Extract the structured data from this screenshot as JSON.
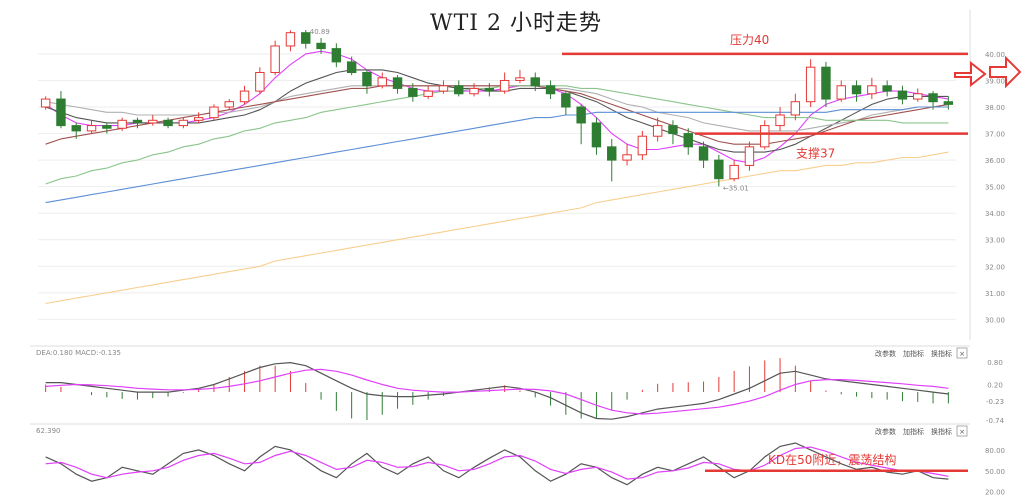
{
  "title": "WTI 2 小时走势",
  "controls": {
    "params": "改参数",
    "add": "加指标",
    "change": "换指标",
    "close": "×"
  },
  "colors": {
    "up": "#e53935",
    "down": "#2e7d32",
    "annotation": "#e53935",
    "ma5": "#e040fb",
    "ma10": "#555555",
    "ma20": "#b0b0b0",
    "ma30": "#a0524f",
    "ma60": "#8bc58b",
    "ma120": "#5b8fd6",
    "ma250": "#f8cf8f"
  },
  "annotations": {
    "resistance": {
      "label": "压力40",
      "value": 40
    },
    "support": {
      "label": "支撑37",
      "value": 37
    },
    "kd": {
      "label": "KD在50附近，震荡结构",
      "value": 50
    },
    "arrow_icon": "right-arrow-icon"
  },
  "chart_data": [
    {
      "type": "candlestick",
      "title": "WTI 2 小时走势",
      "ylim": [
        29.6,
        40.6
      ],
      "y_ticks": [
        "40.00",
        "39.00",
        "38.00",
        "37.00",
        "36.00",
        "35.00",
        "34.00",
        "33.00",
        "32.00",
        "31.00",
        "30.00"
      ],
      "high_label": "40.89",
      "low_label": "35.01",
      "candles": [
        [
          38.0,
          38.3,
          37.9,
          38.4
        ],
        [
          38.3,
          37.3,
          37.2,
          38.6
        ],
        [
          37.3,
          37.1,
          36.8,
          37.4
        ],
        [
          37.1,
          37.3,
          37.0,
          37.5
        ],
        [
          37.3,
          37.2,
          37.0,
          37.4
        ],
        [
          37.2,
          37.5,
          37.1,
          37.6
        ],
        [
          37.5,
          37.4,
          37.2,
          37.6
        ],
        [
          37.4,
          37.5,
          37.3,
          37.7
        ],
        [
          37.5,
          37.3,
          37.2,
          37.6
        ],
        [
          37.3,
          37.5,
          37.2,
          37.6
        ],
        [
          37.5,
          37.6,
          37.4,
          37.8
        ],
        [
          37.6,
          38.0,
          37.5,
          38.1
        ],
        [
          38.0,
          38.2,
          37.9,
          38.3
        ],
        [
          38.2,
          38.6,
          38.1,
          38.8
        ],
        [
          38.6,
          39.3,
          38.5,
          39.5
        ],
        [
          39.3,
          40.3,
          39.2,
          40.5
        ],
        [
          40.3,
          40.8,
          40.1,
          40.89
        ],
        [
          40.8,
          40.4,
          40.2,
          40.9
        ],
        [
          40.4,
          40.2,
          40.0,
          40.6
        ],
        [
          40.2,
          39.7,
          39.5,
          40.4
        ],
        [
          39.7,
          39.3,
          39.2,
          39.9
        ],
        [
          39.3,
          38.8,
          38.5,
          39.4
        ],
        [
          38.8,
          39.1,
          38.7,
          39.3
        ],
        [
          39.1,
          38.7,
          38.5,
          39.2
        ],
        [
          38.7,
          38.4,
          38.2,
          38.9
        ],
        [
          38.4,
          38.6,
          38.3,
          38.8
        ],
        [
          38.6,
          38.8,
          38.5,
          39.0
        ],
        [
          38.8,
          38.5,
          38.4,
          39.0
        ],
        [
          38.5,
          38.7,
          38.4,
          38.9
        ],
        [
          38.7,
          38.6,
          38.4,
          38.9
        ],
        [
          38.6,
          39.0,
          38.5,
          39.3
        ],
        [
          39.0,
          39.1,
          38.9,
          39.4
        ],
        [
          39.1,
          38.8,
          38.6,
          39.3
        ],
        [
          38.8,
          38.5,
          38.3,
          39.0
        ],
        [
          38.5,
          38.0,
          37.7,
          38.6
        ],
        [
          38.0,
          37.4,
          36.6,
          38.1
        ],
        [
          37.4,
          36.5,
          36.2,
          37.6
        ],
        [
          36.5,
          36.0,
          35.2,
          36.8
        ],
        [
          36.0,
          36.2,
          35.8,
          36.6
        ],
        [
          36.2,
          36.9,
          36.0,
          37.1
        ],
        [
          36.9,
          37.3,
          36.7,
          37.6
        ],
        [
          37.3,
          37.0,
          36.6,
          37.5
        ],
        [
          37.0,
          36.5,
          36.2,
          37.2
        ],
        [
          36.5,
          36.0,
          35.7,
          36.7
        ],
        [
          36.0,
          35.3,
          35.01,
          36.2
        ],
        [
          35.3,
          35.8,
          35.2,
          36.0
        ],
        [
          35.8,
          36.5,
          35.6,
          36.7
        ],
        [
          36.5,
          37.3,
          36.4,
          37.5
        ],
        [
          37.3,
          37.7,
          37.1,
          38.0
        ],
        [
          37.7,
          38.2,
          37.5,
          38.5
        ],
        [
          38.2,
          39.5,
          38.0,
          39.8
        ],
        [
          39.5,
          38.3,
          38.0,
          39.7
        ],
        [
          38.3,
          38.8,
          38.2,
          39.0
        ],
        [
          38.8,
          38.5,
          38.2,
          39.0
        ],
        [
          38.5,
          38.8,
          38.3,
          39.1
        ],
        [
          38.8,
          38.6,
          38.4,
          39.0
        ],
        [
          38.6,
          38.3,
          38.1,
          38.8
        ],
        [
          38.3,
          38.5,
          38.2,
          38.7
        ],
        [
          38.5,
          38.2,
          37.9,
          38.6
        ],
        [
          38.2,
          38.1,
          37.9,
          38.4
        ]
      ],
      "moving_averages": [
        {
          "colorKey": "ma5",
          "values": [
            38.1,
            37.7,
            37.4,
            37.3,
            37.3,
            37.3,
            37.4,
            37.4,
            37.4,
            37.4,
            37.5,
            37.6,
            37.8,
            38.1,
            38.5,
            39.1,
            39.6,
            40.0,
            40.1,
            40.0,
            39.8,
            39.4,
            39.1,
            38.9,
            38.7,
            38.6,
            38.6,
            38.6,
            38.6,
            38.6,
            38.7,
            38.8,
            38.8,
            38.7,
            38.5,
            38.1,
            37.6,
            37.0,
            36.6,
            36.4,
            36.4,
            36.5,
            36.6,
            36.6,
            36.3,
            36.0,
            35.9,
            36.1,
            36.5,
            37.0,
            37.7,
            38.1,
            38.3,
            38.4,
            38.5,
            38.6,
            38.6,
            38.5,
            38.4,
            38.3
          ]
        },
        {
          "colorKey": "ma10",
          "values": [
            38.0,
            37.8,
            37.6,
            37.5,
            37.4,
            37.4,
            37.4,
            37.4,
            37.4,
            37.4,
            37.4,
            37.5,
            37.6,
            37.7,
            37.9,
            38.2,
            38.6,
            38.9,
            39.1,
            39.3,
            39.4,
            39.4,
            39.4,
            39.3,
            39.1,
            38.9,
            38.8,
            38.7,
            38.7,
            38.6,
            38.6,
            38.7,
            38.7,
            38.7,
            38.6,
            38.4,
            38.2,
            37.9,
            37.6,
            37.4,
            37.2,
            37.0,
            36.8,
            36.6,
            36.4,
            36.3,
            36.3,
            36.3,
            36.4,
            36.6,
            36.9,
            37.2,
            37.5,
            37.8,
            38.1,
            38.3,
            38.4,
            38.4,
            38.4,
            38.4
          ]
        },
        {
          "colorKey": "ma20",
          "values": [
            38.2,
            38.1,
            38.0,
            37.9,
            37.8,
            37.8,
            37.7,
            37.7,
            37.7,
            37.7,
            37.7,
            37.8,
            37.8,
            37.9,
            38.0,
            38.2,
            38.4,
            38.5,
            38.6,
            38.7,
            38.8,
            38.8,
            38.8,
            38.8,
            38.8,
            38.8,
            38.8,
            38.8,
            38.8,
            38.8,
            38.8,
            38.8,
            38.8,
            38.7,
            38.7,
            38.6,
            38.5,
            38.3,
            38.1,
            38.0,
            37.8,
            37.7,
            37.6,
            37.4,
            37.3,
            37.2,
            37.1,
            37.1,
            37.1,
            37.1,
            37.2,
            37.3,
            37.4,
            37.5,
            37.7,
            37.8,
            37.9,
            38.0,
            38.0,
            38.1
          ]
        },
        {
          "colorKey": "ma30",
          "values": [
            36.6,
            36.8,
            36.9,
            37.0,
            37.1,
            37.2,
            37.3,
            37.4,
            37.5,
            37.6,
            37.7,
            37.8,
            37.9,
            38.0,
            38.1,
            38.2,
            38.3,
            38.4,
            38.5,
            38.6,
            38.7,
            38.7,
            38.8,
            38.8,
            38.8,
            38.8,
            38.8,
            38.8,
            38.8,
            38.8,
            38.8,
            38.8,
            38.8,
            38.7,
            38.6,
            38.5,
            38.3,
            38.1,
            37.9,
            37.7,
            37.5,
            37.3,
            37.1,
            36.9,
            36.7,
            36.6,
            36.6,
            36.6,
            36.7,
            36.8,
            36.9,
            37.1,
            37.3,
            37.5,
            37.6,
            37.7,
            37.8,
            37.9,
            38.0,
            38.1
          ]
        },
        {
          "colorKey": "ma60",
          "values": [
            35.1,
            35.3,
            35.4,
            35.6,
            35.7,
            35.9,
            36.0,
            36.2,
            36.3,
            36.5,
            36.6,
            36.8,
            36.9,
            37.1,
            37.2,
            37.4,
            37.5,
            37.6,
            37.8,
            37.9,
            38.0,
            38.1,
            38.2,
            38.3,
            38.4,
            38.5,
            38.6,
            38.6,
            38.7,
            38.7,
            38.8,
            38.8,
            38.8,
            38.8,
            38.8,
            38.7,
            38.7,
            38.6,
            38.5,
            38.4,
            38.3,
            38.2,
            38.1,
            38.0,
            37.9,
            37.8,
            37.7,
            37.6,
            37.6,
            37.6,
            37.6,
            37.5,
            37.5,
            37.5,
            37.5,
            37.5,
            37.4,
            37.4,
            37.4,
            37.4
          ]
        },
        {
          "colorKey": "ma120",
          "values": [
            34.4,
            34.5,
            34.6,
            34.7,
            34.8,
            34.9,
            35.0,
            35.1,
            35.2,
            35.3,
            35.4,
            35.5,
            35.6,
            35.7,
            35.8,
            35.9,
            36.0,
            36.1,
            36.2,
            36.3,
            36.4,
            36.5,
            36.6,
            36.7,
            36.8,
            36.9,
            37.0,
            37.1,
            37.2,
            37.3,
            37.4,
            37.5,
            37.6,
            37.6,
            37.7,
            37.7,
            37.8,
            37.8,
            37.8,
            37.8,
            37.8,
            37.8,
            37.8,
            37.8,
            37.8,
            37.8,
            37.8,
            37.8,
            37.8,
            37.8,
            37.8,
            37.8,
            37.9,
            37.9,
            37.9,
            37.9,
            37.9,
            38.0,
            38.0,
            38.0
          ]
        },
        {
          "colorKey": "ma250",
          "values": [
            30.6,
            30.7,
            30.8,
            30.9,
            31.0,
            31.1,
            31.2,
            31.3,
            31.4,
            31.5,
            31.6,
            31.7,
            31.8,
            31.9,
            32.0,
            32.2,
            32.3,
            32.4,
            32.5,
            32.6,
            32.7,
            32.8,
            32.9,
            33.0,
            33.1,
            33.2,
            33.3,
            33.4,
            33.5,
            33.6,
            33.7,
            33.8,
            33.9,
            34.0,
            34.1,
            34.2,
            34.4,
            34.5,
            34.6,
            34.7,
            34.8,
            34.9,
            35.0,
            35.1,
            35.2,
            35.3,
            35.4,
            35.5,
            35.6,
            35.6,
            35.7,
            35.8,
            35.8,
            35.9,
            35.9,
            36.0,
            36.1,
            36.1,
            36.2,
            36.3
          ]
        }
      ]
    },
    {
      "type": "macd",
      "header": "DEA:0.180 MACD:-0.135",
      "ylim": [
        -0.74,
        0.85
      ],
      "y_ticks": [
        "0.80",
        "0.20",
        "-0.23",
        "-0.74"
      ],
      "dif": [
        0.25,
        0.25,
        0.2,
        0.15,
        0.1,
        0.05,
        0.0,
        0.0,
        0.0,
        0.05,
        0.1,
        0.2,
        0.35,
        0.5,
        0.65,
        0.75,
        0.78,
        0.7,
        0.5,
        0.3,
        0.1,
        -0.05,
        -0.1,
        -0.12,
        -0.12,
        -0.08,
        -0.05,
        0.0,
        0.05,
        0.1,
        0.15,
        0.1,
        0.0,
        -0.15,
        -0.35,
        -0.55,
        -0.7,
        -0.72,
        -0.65,
        -0.55,
        -0.45,
        -0.4,
        -0.35,
        -0.3,
        -0.2,
        -0.05,
        0.1,
        0.3,
        0.5,
        0.55,
        0.45,
        0.35,
        0.3,
        0.25,
        0.2,
        0.15,
        0.1,
        0.05,
        0.0,
        -0.05
      ],
      "dea": [
        0.15,
        0.18,
        0.2,
        0.19,
        0.17,
        0.14,
        0.1,
        0.08,
        0.06,
        0.06,
        0.07,
        0.1,
        0.15,
        0.22,
        0.3,
        0.4,
        0.5,
        0.58,
        0.6,
        0.55,
        0.45,
        0.32,
        0.2,
        0.1,
        0.05,
        0.02,
        0.0,
        0.0,
        0.02,
        0.04,
        0.06,
        0.08,
        0.07,
        0.03,
        -0.05,
        -0.2,
        -0.35,
        -0.48,
        -0.55,
        -0.58,
        -0.56,
        -0.52,
        -0.48,
        -0.44,
        -0.4,
        -0.33,
        -0.24,
        -0.12,
        0.05,
        0.2,
        0.3,
        0.33,
        0.33,
        0.31,
        0.28,
        0.25,
        0.22,
        0.18,
        0.15,
        0.1
      ]
    },
    {
      "type": "kd",
      "header": "62.390",
      "ylim": [
        18,
        100
      ],
      "y_ticks": [
        "80.00",
        "50.00",
        "20.00"
      ],
      "k": [
        70,
        60,
        45,
        35,
        40,
        55,
        50,
        45,
        60,
        75,
        80,
        72,
        60,
        50,
        70,
        85,
        80,
        65,
        50,
        40,
        60,
        75,
        55,
        45,
        60,
        70,
        50,
        40,
        55,
        68,
        80,
        70,
        50,
        35,
        45,
        60,
        55,
        40,
        30,
        45,
        55,
        50,
        60,
        70,
        55,
        40,
        50,
        70,
        85,
        90,
        80,
        70,
        60,
        52,
        55,
        48,
        45,
        50,
        40,
        38
      ],
      "d": [
        60,
        62,
        55,
        45,
        40,
        45,
        48,
        50,
        55,
        65,
        72,
        75,
        68,
        60,
        62,
        72,
        78,
        72,
        62,
        52,
        55,
        65,
        62,
        55,
        56,
        62,
        58,
        50,
        52,
        60,
        70,
        72,
        64,
        52,
        46,
        52,
        55,
        48,
        38,
        40,
        48,
        50,
        54,
        62,
        60,
        52,
        50,
        58,
        72,
        82,
        84,
        78,
        70,
        62,
        58,
        54,
        50,
        50,
        46,
        42
      ]
    }
  ]
}
